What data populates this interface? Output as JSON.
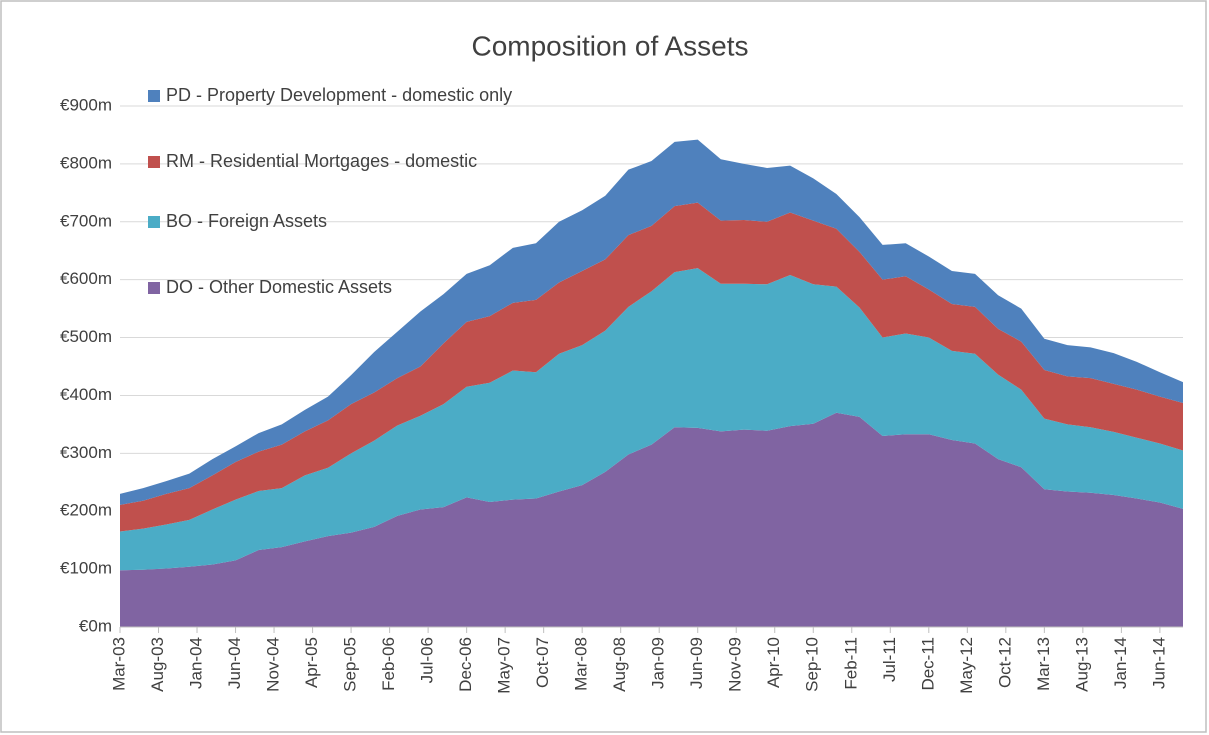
{
  "chart_data": {
    "type": "stacked-area",
    "title": "Composition of Assets",
    "x": [
      0,
      3,
      6,
      9,
      12,
      15,
      18,
      21,
      24,
      27,
      30,
      33,
      36,
      39,
      42,
      45,
      48,
      51,
      54,
      57,
      60,
      63,
      66,
      69,
      72,
      75,
      78,
      81,
      84,
      87,
      90,
      93,
      96,
      99,
      102,
      105,
      108,
      111,
      114,
      117,
      120,
      123,
      126,
      129,
      132,
      135,
      138
    ],
    "xlim": [
      0,
      138
    ],
    "xticks": [
      {
        "value": 0,
        "label": "Mar-03"
      },
      {
        "value": 5,
        "label": "Aug-03"
      },
      {
        "value": 10,
        "label": "Jan-04"
      },
      {
        "value": 15,
        "label": "Jun-04"
      },
      {
        "value": 20,
        "label": "Nov-04"
      },
      {
        "value": 25,
        "label": "Apr-05"
      },
      {
        "value": 30,
        "label": "Sep-05"
      },
      {
        "value": 35,
        "label": "Feb-06"
      },
      {
        "value": 40,
        "label": "Jul-06"
      },
      {
        "value": 45,
        "label": "Dec-06"
      },
      {
        "value": 50,
        "label": "May-07"
      },
      {
        "value": 55,
        "label": "Oct-07"
      },
      {
        "value": 60,
        "label": "Mar-08"
      },
      {
        "value": 65,
        "label": "Aug-08"
      },
      {
        "value": 70,
        "label": "Jan-09"
      },
      {
        "value": 75,
        "label": "Jun-09"
      },
      {
        "value": 80,
        "label": "Nov-09"
      },
      {
        "value": 85,
        "label": "Apr-10"
      },
      {
        "value": 90,
        "label": "Sep-10"
      },
      {
        "value": 95,
        "label": "Feb-11"
      },
      {
        "value": 100,
        "label": "Jul-11"
      },
      {
        "value": 105,
        "label": "Dec-11"
      },
      {
        "value": 110,
        "label": "May-12"
      },
      {
        "value": 115,
        "label": "Oct-12"
      },
      {
        "value": 120,
        "label": "Mar-13"
      },
      {
        "value": 125,
        "label": "Aug-13"
      },
      {
        "value": 130,
        "label": "Jan-14"
      },
      {
        "value": 135,
        "label": "Jun-14"
      }
    ],
    "ylim": [
      0,
      900
    ],
    "yticks": [
      {
        "value": 0,
        "label": "€0m"
      },
      {
        "value": 100,
        "label": "€100m"
      },
      {
        "value": 200,
        "label": "€200m"
      },
      {
        "value": 300,
        "label": "€300m"
      },
      {
        "value": 400,
        "label": "€400m"
      },
      {
        "value": 500,
        "label": "€500m"
      },
      {
        "value": 600,
        "label": "€600m"
      },
      {
        "value": 700,
        "label": "€700m"
      },
      {
        "value": 800,
        "label": "€800m"
      },
      {
        "value": 900,
        "label": "€900m"
      }
    ],
    "grid": true,
    "legend": "top-left",
    "series": [
      {
        "name": "DO - Other Domestic Assets",
        "color": "#8064a2",
        "values": [
          98,
          99,
          101,
          104,
          108,
          115,
          133,
          138,
          148,
          157,
          163,
          173,
          192,
          203,
          207,
          224,
          216,
          220,
          222,
          234,
          245,
          268,
          298,
          315,
          345,
          344,
          338,
          341,
          339,
          347,
          351,
          370,
          363,
          330,
          333,
          333,
          323,
          317,
          290,
          276,
          238,
          234,
          232,
          228,
          222,
          215,
          204
        ]
      },
      {
        "name": "BO -  Foreign Assets",
        "color": "#4bacc6",
        "values": [
          67,
          71,
          76,
          81,
          95,
          105,
          102,
          102,
          114,
          118,
          137,
          149,
          156,
          162,
          178,
          191,
          206,
          223,
          218,
          238,
          242,
          244,
          255,
          265,
          268,
          276,
          255,
          252,
          253,
          261,
          241,
          218,
          189,
          170,
          174,
          167,
          154,
          155,
          146,
          134,
          122,
          116,
          113,
          109,
          105,
          102,
          101
        ]
      },
      {
        "name": "RM - Residential Mortgages - domestic",
        "color": "#c0504d",
        "values": [
          46,
          48,
          53,
          55,
          59,
          65,
          68,
          75,
          76,
          82,
          85,
          83,
          82,
          85,
          105,
          112,
          115,
          117,
          125,
          123,
          128,
          123,
          124,
          113,
          114,
          113,
          109,
          110,
          108,
          108,
          110,
          100,
          96,
          100,
          99,
          83,
          81,
          81,
          79,
          83,
          84,
          83,
          85,
          83,
          83,
          81,
          82
        ]
      },
      {
        "name": "PD - Property Development - domestic only",
        "color": "#4f81bd",
        "values": [
          19,
          22,
          22,
          25,
          28,
          27,
          32,
          35,
          37,
          41,
          50,
          70,
          80,
          95,
          85,
          83,
          88,
          95,
          98,
          105,
          105,
          110,
          113,
          112,
          111,
          109,
          106,
          97,
          93,
          81,
          73,
          60,
          60,
          60,
          57,
          57,
          57,
          57,
          58,
          57,
          54,
          54,
          53,
          53,
          48,
          42,
          36
        ]
      }
    ]
  }
}
